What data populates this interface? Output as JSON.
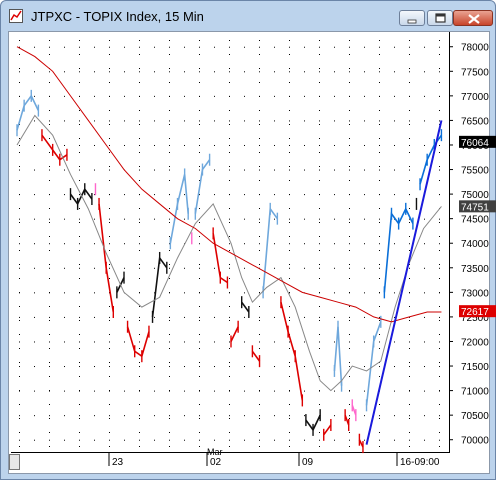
{
  "window": {
    "title": "JTPXC - TOPIX Index, 15 Min",
    "icon": "chart-app-icon",
    "buttons": [
      "minimize-icon",
      "maximize-icon",
      "close-icon"
    ]
  },
  "chart_data": {
    "type": "line",
    "title": "",
    "ylim": [
      69750,
      78300
    ],
    "y_ticks": [
      70000,
      70500,
      71000,
      71500,
      72000,
      72500,
      73000,
      73500,
      74000,
      74500,
      75000,
      75500,
      76000,
      76500,
      77000,
      77500,
      78000
    ],
    "y_tick_labels": [
      "70000",
      "70500",
      "71000",
      "71500",
      "72000",
      "72500",
      "73000",
      "73500",
      "74000",
      "74500",
      "75000",
      "75500",
      "76000",
      "76500",
      "77000",
      "77500",
      "78000"
    ],
    "x_tick_labels": [
      "23",
      "02",
      "09",
      "16-09:00"
    ],
    "x_month_label": "Mar",
    "grid": true,
    "price_labels": [
      {
        "text": "76064",
        "value": 76064,
        "bg": "#000000",
        "fg": "#ffffff"
      },
      {
        "text": "74751",
        "value": 74751,
        "bg": "#404040",
        "fg": "#ffffff"
      },
      {
        "text": "72617",
        "value": 72617,
        "bg": "#dd0000",
        "fg": "#ffffff"
      }
    ],
    "series": [
      {
        "color_segments": [
          {
            "color": "#6fa8dc",
            "points": [
              [
                0,
                76300
              ],
              [
                2,
                76800
              ],
              [
                4,
                77000
              ],
              [
                6,
                76700
              ]
            ]
          },
          {
            "color": "#dd0000",
            "points": [
              [
                7,
                76200
              ],
              [
                10,
                75900
              ],
              [
                12,
                75700
              ],
              [
                14,
                75800
              ]
            ]
          },
          {
            "color": "#111111",
            "points": [
              [
                15,
                75000
              ],
              [
                17,
                74800
              ],
              [
                19,
                75100
              ],
              [
                21,
                74900
              ]
            ]
          },
          {
            "color": "#ff66cc",
            "points": [
              [
                22,
                75100
              ]
            ]
          },
          {
            "color": "#dd0000",
            "points": [
              [
                23,
                74800
              ],
              [
                25,
                73500
              ],
              [
                27,
                72600
              ]
            ]
          },
          {
            "color": "#111111",
            "points": [
              [
                28,
                73000
              ],
              [
                30,
                73300
              ]
            ]
          },
          {
            "color": "#dd0000",
            "points": [
              [
                31,
                72300
              ],
              [
                33,
                71800
              ],
              [
                35,
                71700
              ],
              [
                37,
                72200
              ]
            ]
          },
          {
            "color": "#111111",
            "points": [
              [
                38,
                72500
              ],
              [
                40,
                73700
              ],
              [
                42,
                73500
              ]
            ]
          },
          {
            "color": "#6fa8dc",
            "points": [
              [
                43,
                74000
              ],
              [
                45,
                74800
              ],
              [
                47,
                75400
              ],
              [
                48,
                74600
              ]
            ]
          },
          {
            "color": "#ff66cc",
            "points": [
              [
                49,
                74100
              ]
            ]
          },
          {
            "color": "#6fa8dc",
            "points": [
              [
                50,
                74600
              ],
              [
                52,
                75500
              ],
              [
                54,
                75700
              ]
            ]
          },
          {
            "color": "#dd0000",
            "points": [
              [
                55,
                74200
              ],
              [
                57,
                73300
              ],
              [
                59,
                73200
              ]
            ]
          },
          {
            "color": "#dd0000",
            "points": [
              [
                60,
                72000
              ],
              [
                62,
                72300
              ]
            ]
          },
          {
            "color": "#111111",
            "points": [
              [
                63,
                72800
              ],
              [
                65,
                72600
              ]
            ]
          },
          {
            "color": "#dd0000",
            "points": [
              [
                66,
                71800
              ],
              [
                68,
                71600
              ]
            ]
          },
          {
            "color": "#6fa8dc",
            "points": [
              [
                69,
                73000
              ],
              [
                71,
                74700
              ],
              [
                73,
                74500
              ]
            ]
          },
          {
            "color": "#dd0000",
            "points": [
              [
                74,
                72800
              ],
              [
                76,
                72200
              ],
              [
                78,
                71700
              ],
              [
                80,
                70800
              ]
            ]
          },
          {
            "color": "#111111",
            "points": [
              [
                81,
                70400
              ],
              [
                83,
                70200
              ],
              [
                85,
                70500
              ]
            ]
          },
          {
            "color": "#dd0000",
            "points": [
              [
                86,
                70100
              ],
              [
                88,
                70300
              ]
            ]
          },
          {
            "color": "#6fa8dc",
            "points": [
              [
                89,
                71400
              ],
              [
                90,
                72300
              ],
              [
                91,
                71100
              ]
            ]
          },
          {
            "color": "#dd0000",
            "points": [
              [
                92,
                70500
              ],
              [
                93,
                70300
              ]
            ]
          },
          {
            "color": "#ff66cc",
            "points": [
              [
                94,
                70700
              ],
              [
                95,
                70500
              ]
            ]
          },
          {
            "color": "#dd0000",
            "points": [
              [
                96,
                70000
              ],
              [
                97,
                69850
              ]
            ]
          },
          {
            "color": "#6fa8dc",
            "points": [
              [
                98,
                70700
              ],
              [
                100,
                72000
              ],
              [
                102,
                72400
              ]
            ]
          },
          {
            "color": "#0a6fd8",
            "points": [
              [
                103,
                73000
              ],
              [
                105,
                74600
              ],
              [
                107,
                74400
              ],
              [
                109,
                74700
              ],
              [
                111,
                74400
              ]
            ]
          },
          {
            "color": "#111111",
            "points": [
              [
                112,
                74800
              ]
            ]
          },
          {
            "color": "#0a6fd8",
            "points": [
              [
                113,
                75200
              ],
              [
                115,
                75700
              ],
              [
                117,
                76000
              ],
              [
                119,
                76200
              ]
            ]
          }
        ]
      },
      {
        "name": "",
        "color": "#888888",
        "points": [
          [
            0,
            76000
          ],
          [
            5,
            76600
          ],
          [
            10,
            76200
          ],
          [
            15,
            75400
          ],
          [
            20,
            74700
          ],
          [
            25,
            73800
          ],
          [
            30,
            73000
          ],
          [
            35,
            72700
          ],
          [
            40,
            72900
          ],
          [
            45,
            73700
          ],
          [
            50,
            74400
          ],
          [
            55,
            74800
          ],
          [
            60,
            74000
          ],
          [
            63,
            73300
          ],
          [
            66,
            72800
          ],
          [
            70,
            73100
          ],
          [
            74,
            73300
          ],
          [
            78,
            72700
          ],
          [
            82,
            71800
          ],
          [
            85,
            71200
          ],
          [
            88,
            71000
          ],
          [
            91,
            71200
          ],
          [
            94,
            71500
          ],
          [
            98,
            71400
          ],
          [
            102,
            71600
          ],
          [
            106,
            72700
          ],
          [
            110,
            73600
          ],
          [
            114,
            74300
          ],
          [
            119,
            74750
          ]
        ]
      },
      {
        "name": "",
        "color": "#cc0000",
        "points": [
          [
            0,
            78000
          ],
          [
            5,
            77800
          ],
          [
            10,
            77500
          ],
          [
            15,
            77000
          ],
          [
            20,
            76500
          ],
          [
            25,
            76000
          ],
          [
            30,
            75500
          ],
          [
            35,
            75100
          ],
          [
            40,
            74800
          ],
          [
            45,
            74500
          ],
          [
            50,
            74300
          ],
          [
            55,
            74000
          ],
          [
            60,
            73800
          ],
          [
            65,
            73600
          ],
          [
            70,
            73400
          ],
          [
            75,
            73200
          ],
          [
            80,
            73000
          ],
          [
            85,
            72900
          ],
          [
            90,
            72800
          ],
          [
            95,
            72700
          ],
          [
            100,
            72500
          ],
          [
            105,
            72400
          ],
          [
            110,
            72500
          ],
          [
            115,
            72600
          ],
          [
            119,
            72600
          ]
        ]
      },
      {
        "name": "",
        "color": "#1a1adc",
        "points": [
          [
            98,
            69900
          ],
          [
            119,
            76500
          ]
        ]
      }
    ]
  }
}
